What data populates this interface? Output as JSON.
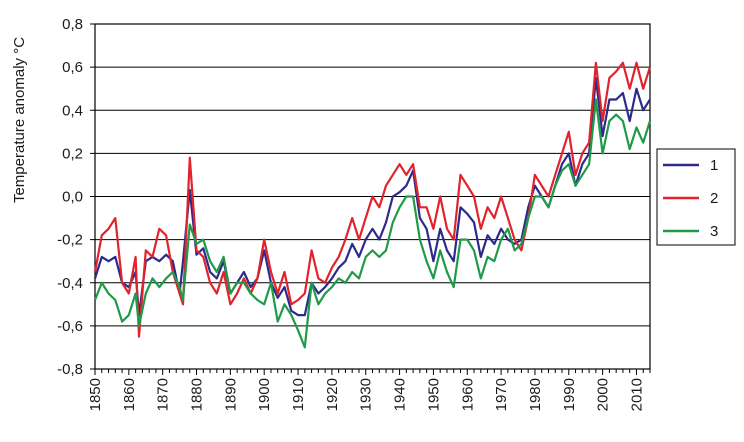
{
  "chart_data": {
    "type": "line",
    "ylabel": "Temperature anomaly °C",
    "xlabel": "",
    "xlim": [
      1850,
      2014
    ],
    "ylim": [
      -0.8,
      0.8
    ],
    "grid": "horizontal",
    "legend_position": "right",
    "x_ticks": [
      1850,
      1860,
      1870,
      1880,
      1890,
      1900,
      1910,
      1920,
      1930,
      1940,
      1950,
      1960,
      1970,
      1980,
      1990,
      2000,
      2010
    ],
    "x_tick_labels": [
      "1850",
      "1860",
      "1870",
      "1880",
      "1890",
      "1900",
      "1910",
      "1920",
      "1930",
      "1940",
      "1950",
      "1960",
      "1970",
      "1980",
      "1990",
      "2000",
      "2010"
    ],
    "y_ticks": [
      -0.8,
      -0.6,
      -0.4,
      -0.2,
      0.0,
      0.2,
      0.4,
      0.6,
      0.8
    ],
    "y_tick_labels": [
      "-0,8",
      "-0,6",
      "-0,4",
      "-0,2",
      "0,0",
      "0,2",
      "0,4",
      "0,6",
      "0,8"
    ],
    "series": [
      {
        "name": "1",
        "color": "#2d2a8a",
        "points": [
          [
            1850,
            -0.38
          ],
          [
            1852,
            -0.28
          ],
          [
            1854,
            -0.3
          ],
          [
            1856,
            -0.28
          ],
          [
            1858,
            -0.4
          ],
          [
            1860,
            -0.42
          ],
          [
            1862,
            -0.35
          ],
          [
            1863,
            -0.55
          ],
          [
            1865,
            -0.3
          ],
          [
            1867,
            -0.28
          ],
          [
            1869,
            -0.3
          ],
          [
            1871,
            -0.27
          ],
          [
            1873,
            -0.3
          ],
          [
            1875,
            -0.45
          ],
          [
            1876,
            -0.3
          ],
          [
            1878,
            0.03
          ],
          [
            1880,
            -0.27
          ],
          [
            1882,
            -0.24
          ],
          [
            1884,
            -0.35
          ],
          [
            1886,
            -0.38
          ],
          [
            1888,
            -0.3
          ],
          [
            1890,
            -0.45
          ],
          [
            1892,
            -0.4
          ],
          [
            1894,
            -0.35
          ],
          [
            1896,
            -0.42
          ],
          [
            1898,
            -0.38
          ],
          [
            1900,
            -0.25
          ],
          [
            1902,
            -0.4
          ],
          [
            1904,
            -0.47
          ],
          [
            1906,
            -0.42
          ],
          [
            1908,
            -0.53
          ],
          [
            1910,
            -0.55
          ],
          [
            1912,
            -0.55
          ],
          [
            1914,
            -0.4
          ],
          [
            1916,
            -0.45
          ],
          [
            1918,
            -0.42
          ],
          [
            1920,
            -0.38
          ],
          [
            1922,
            -0.33
          ],
          [
            1924,
            -0.3
          ],
          [
            1926,
            -0.22
          ],
          [
            1928,
            -0.28
          ],
          [
            1930,
            -0.2
          ],
          [
            1932,
            -0.15
          ],
          [
            1934,
            -0.2
          ],
          [
            1936,
            -0.12
          ],
          [
            1938,
            0.0
          ],
          [
            1940,
            0.02
          ],
          [
            1942,
            0.05
          ],
          [
            1944,
            0.12
          ],
          [
            1946,
            -0.1
          ],
          [
            1948,
            -0.15
          ],
          [
            1950,
            -0.3
          ],
          [
            1952,
            -0.15
          ],
          [
            1954,
            -0.25
          ],
          [
            1956,
            -0.3
          ],
          [
            1958,
            -0.05
          ],
          [
            1960,
            -0.08
          ],
          [
            1962,
            -0.12
          ],
          [
            1964,
            -0.28
          ],
          [
            1966,
            -0.18
          ],
          [
            1968,
            -0.22
          ],
          [
            1970,
            -0.15
          ],
          [
            1972,
            -0.2
          ],
          [
            1974,
            -0.22
          ],
          [
            1976,
            -0.2
          ],
          [
            1978,
            -0.05
          ],
          [
            1980,
            0.05
          ],
          [
            1982,
            0.0
          ],
          [
            1984,
            -0.05
          ],
          [
            1986,
            0.05
          ],
          [
            1988,
            0.15
          ],
          [
            1990,
            0.2
          ],
          [
            1992,
            0.05
          ],
          [
            1994,
            0.15
          ],
          [
            1996,
            0.2
          ],
          [
            1998,
            0.55
          ],
          [
            2000,
            0.28
          ],
          [
            2002,
            0.45
          ],
          [
            2004,
            0.45
          ],
          [
            2006,
            0.48
          ],
          [
            2008,
            0.35
          ],
          [
            2010,
            0.5
          ],
          [
            2012,
            0.4
          ],
          [
            2014,
            0.45
          ]
        ]
      },
      {
        "name": "2",
        "color": "#e0232d",
        "points": [
          [
            1850,
            -0.35
          ],
          [
            1852,
            -0.18
          ],
          [
            1854,
            -0.15
          ],
          [
            1856,
            -0.1
          ],
          [
            1858,
            -0.4
          ],
          [
            1860,
            -0.45
          ],
          [
            1862,
            -0.28
          ],
          [
            1863,
            -0.65
          ],
          [
            1865,
            -0.25
          ],
          [
            1867,
            -0.28
          ],
          [
            1869,
            -0.15
          ],
          [
            1871,
            -0.18
          ],
          [
            1873,
            -0.35
          ],
          [
            1875,
            -0.45
          ],
          [
            1876,
            -0.5
          ],
          [
            1878,
            0.18
          ],
          [
            1880,
            -0.25
          ],
          [
            1882,
            -0.28
          ],
          [
            1884,
            -0.4
          ],
          [
            1886,
            -0.45
          ],
          [
            1888,
            -0.35
          ],
          [
            1890,
            -0.5
          ],
          [
            1892,
            -0.45
          ],
          [
            1894,
            -0.38
          ],
          [
            1896,
            -0.45
          ],
          [
            1898,
            -0.38
          ],
          [
            1900,
            -0.2
          ],
          [
            1902,
            -0.35
          ],
          [
            1904,
            -0.45
          ],
          [
            1906,
            -0.35
          ],
          [
            1908,
            -0.5
          ],
          [
            1910,
            -0.48
          ],
          [
            1912,
            -0.45
          ],
          [
            1914,
            -0.25
          ],
          [
            1916,
            -0.38
          ],
          [
            1918,
            -0.4
          ],
          [
            1920,
            -0.33
          ],
          [
            1922,
            -0.28
          ],
          [
            1924,
            -0.2
          ],
          [
            1926,
            -0.1
          ],
          [
            1928,
            -0.2
          ],
          [
            1930,
            -0.1
          ],
          [
            1932,
            0.0
          ],
          [
            1934,
            -0.05
          ],
          [
            1936,
            0.05
          ],
          [
            1938,
            0.1
          ],
          [
            1940,
            0.15
          ],
          [
            1942,
            0.1
          ],
          [
            1944,
            0.15
          ],
          [
            1946,
            -0.05
          ],
          [
            1948,
            -0.05
          ],
          [
            1950,
            -0.15
          ],
          [
            1952,
            0.0
          ],
          [
            1954,
            -0.15
          ],
          [
            1956,
            -0.2
          ],
          [
            1958,
            0.1
          ],
          [
            1960,
            0.05
          ],
          [
            1962,
            0.0
          ],
          [
            1964,
            -0.15
          ],
          [
            1966,
            -0.05
          ],
          [
            1968,
            -0.1
          ],
          [
            1970,
            0.0
          ],
          [
            1972,
            -0.1
          ],
          [
            1974,
            -0.2
          ],
          [
            1976,
            -0.25
          ],
          [
            1978,
            -0.1
          ],
          [
            1980,
            0.1
          ],
          [
            1982,
            0.05
          ],
          [
            1984,
            0.0
          ],
          [
            1986,
            0.1
          ],
          [
            1988,
            0.2
          ],
          [
            1990,
            0.3
          ],
          [
            1992,
            0.1
          ],
          [
            1994,
            0.2
          ],
          [
            1996,
            0.25
          ],
          [
            1998,
            0.62
          ],
          [
            2000,
            0.35
          ],
          [
            2002,
            0.55
          ],
          [
            2004,
            0.58
          ],
          [
            2006,
            0.62
          ],
          [
            2008,
            0.5
          ],
          [
            2010,
            0.62
          ],
          [
            2012,
            0.5
          ],
          [
            2014,
            0.6
          ]
        ]
      },
      {
        "name": "3",
        "color": "#1f9a48",
        "points": [
          [
            1850,
            -0.48
          ],
          [
            1852,
            -0.4
          ],
          [
            1854,
            -0.45
          ],
          [
            1856,
            -0.48
          ],
          [
            1858,
            -0.58
          ],
          [
            1860,
            -0.55
          ],
          [
            1862,
            -0.45
          ],
          [
            1863,
            -0.6
          ],
          [
            1865,
            -0.45
          ],
          [
            1867,
            -0.38
          ],
          [
            1869,
            -0.42
          ],
          [
            1871,
            -0.38
          ],
          [
            1873,
            -0.35
          ],
          [
            1875,
            -0.42
          ],
          [
            1876,
            -0.48
          ],
          [
            1878,
            -0.13
          ],
          [
            1880,
            -0.22
          ],
          [
            1882,
            -0.2
          ],
          [
            1884,
            -0.3
          ],
          [
            1886,
            -0.35
          ],
          [
            1888,
            -0.28
          ],
          [
            1890,
            -0.45
          ],
          [
            1892,
            -0.4
          ],
          [
            1894,
            -0.4
          ],
          [
            1896,
            -0.45
          ],
          [
            1898,
            -0.48
          ],
          [
            1900,
            -0.5
          ],
          [
            1902,
            -0.4
          ],
          [
            1904,
            -0.58
          ],
          [
            1906,
            -0.5
          ],
          [
            1908,
            -0.55
          ],
          [
            1910,
            -0.62
          ],
          [
            1912,
            -0.7
          ],
          [
            1914,
            -0.4
          ],
          [
            1916,
            -0.5
          ],
          [
            1918,
            -0.45
          ],
          [
            1920,
            -0.42
          ],
          [
            1922,
            -0.38
          ],
          [
            1924,
            -0.4
          ],
          [
            1926,
            -0.35
          ],
          [
            1928,
            -0.38
          ],
          [
            1930,
            -0.28
          ],
          [
            1932,
            -0.25
          ],
          [
            1934,
            -0.28
          ],
          [
            1936,
            -0.25
          ],
          [
            1938,
            -0.12
          ],
          [
            1940,
            -0.05
          ],
          [
            1942,
            0.0
          ],
          [
            1944,
            0.0
          ],
          [
            1946,
            -0.2
          ],
          [
            1948,
            -0.3
          ],
          [
            1950,
            -0.38
          ],
          [
            1952,
            -0.25
          ],
          [
            1954,
            -0.35
          ],
          [
            1956,
            -0.42
          ],
          [
            1958,
            -0.2
          ],
          [
            1960,
            -0.2
          ],
          [
            1962,
            -0.25
          ],
          [
            1964,
            -0.38
          ],
          [
            1966,
            -0.28
          ],
          [
            1968,
            -0.3
          ],
          [
            1970,
            -0.2
          ],
          [
            1972,
            -0.15
          ],
          [
            1974,
            -0.25
          ],
          [
            1976,
            -0.22
          ],
          [
            1978,
            -0.1
          ],
          [
            1980,
            0.0
          ],
          [
            1982,
            0.0
          ],
          [
            1984,
            -0.05
          ],
          [
            1986,
            0.05
          ],
          [
            1988,
            0.12
          ],
          [
            1990,
            0.15
          ],
          [
            1992,
            0.05
          ],
          [
            1994,
            0.1
          ],
          [
            1996,
            0.15
          ],
          [
            1998,
            0.45
          ],
          [
            2000,
            0.2
          ],
          [
            2002,
            0.35
          ],
          [
            2004,
            0.38
          ],
          [
            2006,
            0.35
          ],
          [
            2008,
            0.22
          ],
          [
            2010,
            0.32
          ],
          [
            2012,
            0.25
          ],
          [
            2014,
            0.35
          ]
        ]
      }
    ]
  }
}
